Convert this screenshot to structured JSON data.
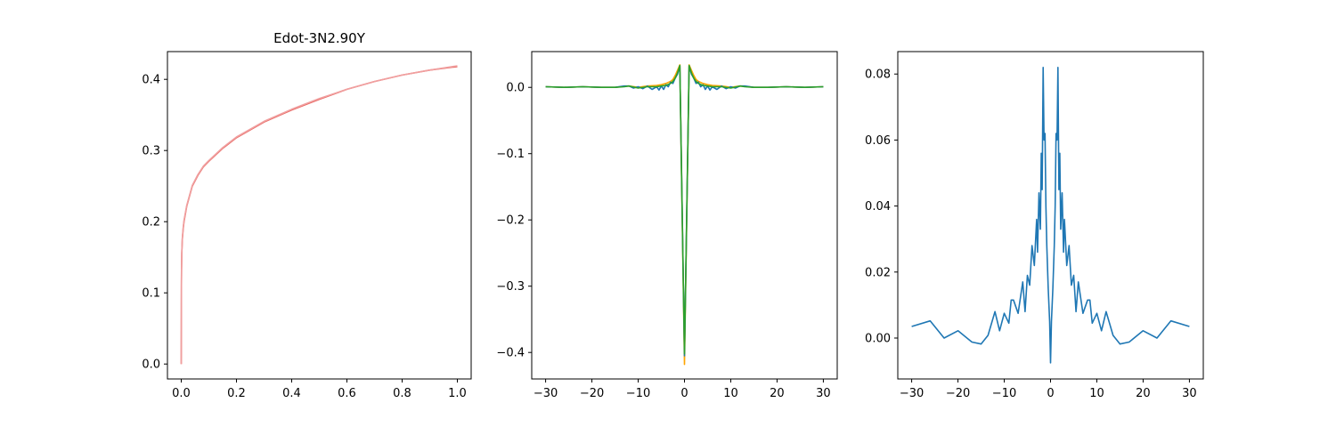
{
  "chart_data": [
    {
      "type": "line",
      "title": "Edot-3N2.90Y",
      "xlabel": "",
      "ylabel": "",
      "xlim": [
        -0.05,
        1.05
      ],
      "ylim": [
        -0.021,
        0.439
      ],
      "xticks": [
        "0.0",
        "0.2",
        "0.4",
        "0.6",
        "0.8",
        "1.0"
      ],
      "yticks": [
        "0.0",
        "0.1",
        "0.2",
        "0.3",
        "0.4"
      ],
      "grid": false,
      "series": [
        {
          "color": "#e8645f",
          "x": [
            0.0,
            0.0005,
            0.001,
            0.002,
            0.004,
            0.007,
            0.01,
            0.02,
            0.04,
            0.06,
            0.08,
            0.1,
            0.15,
            0.2,
            0.3,
            0.4,
            0.5,
            0.6,
            0.7,
            0.8,
            0.9,
            1.0
          ],
          "y": [
            0.0,
            0.11,
            0.13,
            0.155,
            0.175,
            0.19,
            0.2,
            0.222,
            0.25,
            0.265,
            0.277,
            0.285,
            0.303,
            0.318,
            0.34,
            0.357,
            0.372,
            0.386,
            0.397,
            0.406,
            0.413,
            0.418
          ]
        },
        {
          "color": "#f0a0a0",
          "x": [
            0.0,
            0.0005,
            0.001,
            0.002,
            0.004,
            0.007,
            0.01,
            0.02,
            0.04,
            0.06,
            0.08,
            0.1,
            0.15,
            0.2,
            0.3,
            0.4,
            0.5,
            0.6,
            0.7,
            0.8,
            0.9,
            1.0
          ],
          "y": [
            0.0,
            0.112,
            0.131,
            0.157,
            0.177,
            0.192,
            0.202,
            0.223,
            0.251,
            0.266,
            0.278,
            0.286,
            0.304,
            0.319,
            0.341,
            0.358,
            0.373,
            0.386,
            0.397,
            0.406,
            0.413,
            0.419
          ]
        }
      ]
    },
    {
      "type": "line",
      "title": "",
      "xlabel": "",
      "ylabel": "",
      "xlim": [
        -33,
        33
      ],
      "ylim": [
        -0.44,
        0.054
      ],
      "xticks": [
        "−30",
        "−20",
        "−10",
        "0",
        "10",
        "20",
        "30"
      ],
      "yticks": [
        "−0.4",
        "−0.3",
        "−0.2",
        "−0.1",
        "0.0"
      ],
      "grid": false,
      "series": [
        {
          "color": "#ffa500",
          "x": [
            -30,
            -26,
            -22,
            -18,
            -15,
            -13,
            -12,
            -10,
            -8,
            -6,
            -5,
            -4,
            -3,
            -2.5,
            -2,
            -1.5,
            -1,
            0,
            1,
            1.5,
            2,
            2.5,
            3,
            4,
            5,
            6,
            8,
            10,
            12,
            13,
            15,
            18,
            22,
            26,
            30
          ],
          "y": [
            0.001,
            0.0,
            0.001,
            0.0,
            0.0,
            0.0015,
            0.002,
            0.0,
            0.002,
            0.003,
            0.004,
            0.006,
            0.009,
            0.012,
            0.018,
            0.026,
            0.034,
            -0.418,
            0.034,
            0.026,
            0.018,
            0.012,
            0.009,
            0.006,
            0.004,
            0.003,
            0.002,
            0.0,
            0.002,
            0.0015,
            0.0,
            0.0,
            0.001,
            0.0,
            0.001
          ]
        },
        {
          "color": "#1f77b4",
          "x": [
            -30,
            -26,
            -22,
            -18,
            -15,
            -13,
            -12,
            -11,
            -10,
            -9,
            -8,
            -7,
            -6,
            -5.5,
            -5,
            -4.5,
            -4,
            -3.5,
            -3,
            -2.5,
            -2,
            -1.5,
            -1,
            0,
            1,
            1.5,
            2,
            2.5,
            3,
            3.5,
            4,
            4.5,
            5,
            5.5,
            6,
            7,
            8,
            9,
            10,
            11,
            12,
            13,
            15,
            18,
            22,
            26,
            30
          ],
          "y": [
            0.001,
            0.0,
            0.001,
            0.0,
            0.0,
            0.002,
            0.002,
            -0.001,
            0.001,
            -0.002,
            0.002,
            -0.003,
            0.001,
            -0.004,
            0.002,
            -0.003,
            0.004,
            0.001,
            0.008,
            0.006,
            0.014,
            0.02,
            0.032,
            -0.405,
            0.032,
            0.02,
            0.014,
            0.006,
            0.008,
            0.001,
            0.004,
            -0.003,
            0.002,
            -0.004,
            0.001,
            -0.003,
            0.002,
            -0.002,
            0.001,
            -0.001,
            0.002,
            0.002,
            0.0,
            0.0,
            0.001,
            0.0,
            0.001
          ]
        },
        {
          "color": "#2ca02c",
          "x": [
            -30,
            -26,
            -22,
            -18,
            -15,
            -13,
            -12,
            -10,
            -8,
            -6,
            -5,
            -4,
            -3,
            -2.5,
            -2,
            -1.5,
            -1,
            0,
            1,
            1.5,
            2,
            2.5,
            3,
            4,
            5,
            6,
            8,
            10,
            12,
            13,
            15,
            18,
            22,
            26,
            30
          ],
          "y": [
            0.001,
            0.0,
            0.001,
            0.0,
            0.0,
            0.001,
            0.002,
            -0.001,
            0.001,
            0.001,
            0.002,
            0.003,
            0.006,
            0.009,
            0.014,
            0.022,
            0.033,
            -0.402,
            0.033,
            0.022,
            0.014,
            0.009,
            0.006,
            0.003,
            0.002,
            0.001,
            0.001,
            -0.001,
            0.002,
            0.001,
            0.0,
            0.0,
            0.001,
            0.0,
            0.001
          ]
        }
      ]
    },
    {
      "type": "line",
      "title": "",
      "xlabel": "",
      "ylabel": "",
      "xlim": [
        -33,
        33
      ],
      "ylim": [
        -0.0124,
        0.0868
      ],
      "xticks": [
        "−30",
        "−20",
        "−10",
        "0",
        "10",
        "20",
        "30"
      ],
      "yticks": [
        "0.00",
        "0.02",
        "0.04",
        "0.06",
        "0.08"
      ],
      "grid": false,
      "series": [
        {
          "color": "#1f77b4",
          "x": [
            -30,
            -26,
            -23,
            -20,
            -17,
            -15,
            -13.5,
            -12,
            -11,
            -10,
            -9,
            -8.5,
            -8,
            -7,
            -6,
            -5.5,
            -5,
            -4.5,
            -4,
            -3.5,
            -3,
            -2.8,
            -2.5,
            -2.2,
            -2,
            -1.8,
            -1.6,
            -1.4,
            -1.2,
            -1,
            -0.8,
            -0.5,
            -0.2,
            0,
            0.2,
            0.5,
            0.8,
            1,
            1.2,
            1.4,
            1.6,
            1.8,
            2,
            2.2,
            2.5,
            2.8,
            3,
            3.5,
            4,
            4.5,
            5,
            5.5,
            6,
            7,
            8,
            8.5,
            9,
            10,
            11,
            12,
            13.5,
            15,
            17,
            20,
            23,
            26,
            30
          ],
          "y": [
            0.0035,
            0.0052,
            0.0,
            0.0022,
            -0.0012,
            -0.0018,
            0.0008,
            0.008,
            0.0022,
            0.0075,
            0.0045,
            0.0115,
            0.0115,
            0.0075,
            0.017,
            0.008,
            0.019,
            0.016,
            0.028,
            0.022,
            0.036,
            0.026,
            0.044,
            0.033,
            0.056,
            0.045,
            0.082,
            0.06,
            0.062,
            0.04,
            0.028,
            0.015,
            0.005,
            -0.0075,
            0.005,
            0.015,
            0.028,
            0.04,
            0.062,
            0.06,
            0.082,
            0.045,
            0.056,
            0.033,
            0.044,
            0.026,
            0.036,
            0.022,
            0.028,
            0.016,
            0.019,
            0.008,
            0.017,
            0.0075,
            0.0115,
            0.0115,
            0.0045,
            0.0075,
            0.0022,
            0.008,
            0.0008,
            -0.0018,
            -0.0012,
            0.0022,
            0.0,
            0.0052,
            0.0035
          ]
        }
      ]
    }
  ]
}
